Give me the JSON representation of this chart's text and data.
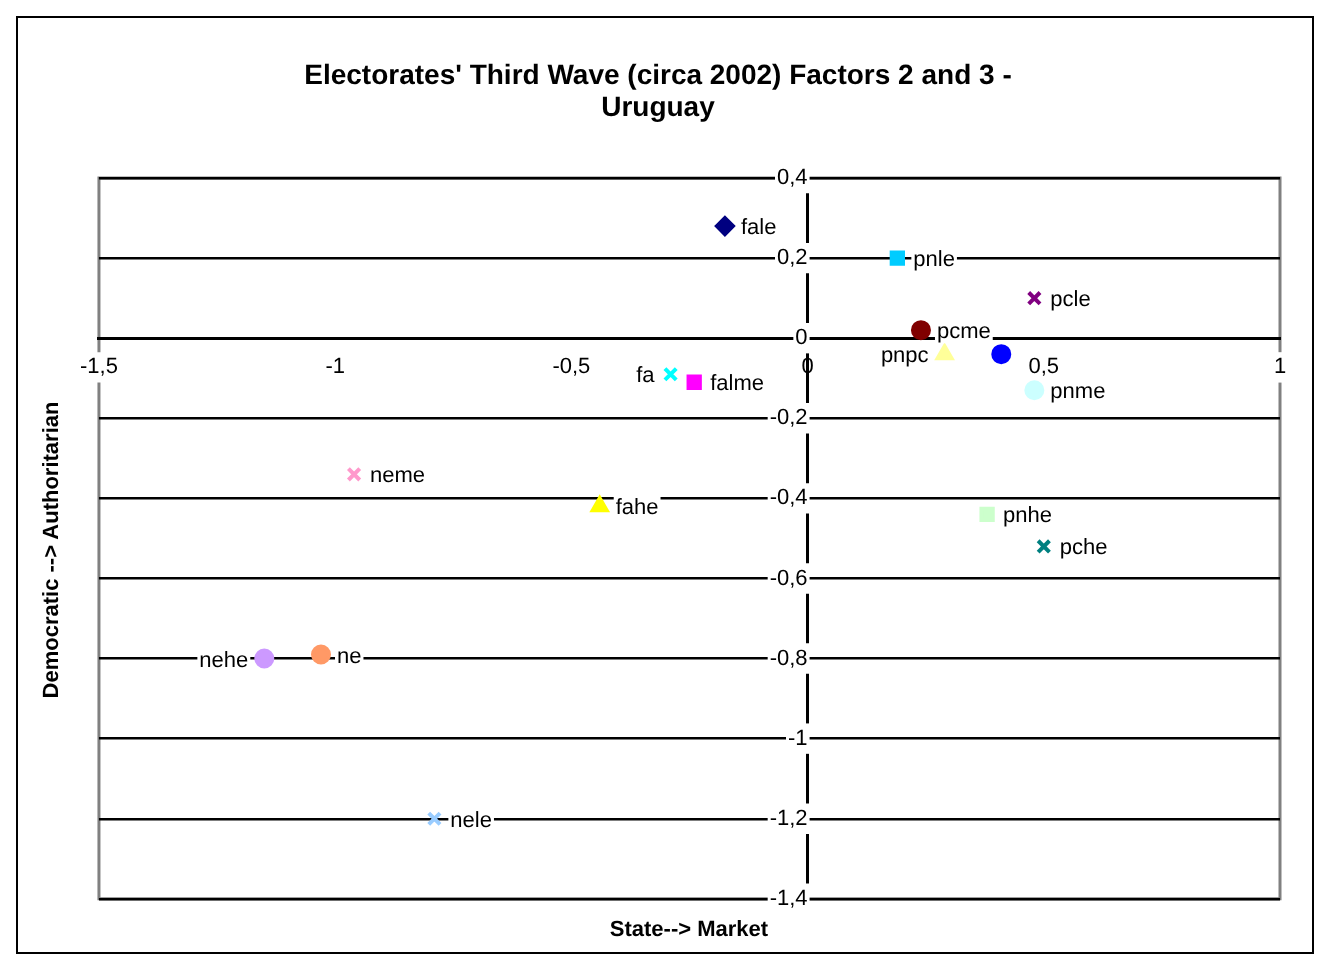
{
  "chart_data": {
    "type": "scatter",
    "title": "Electorates' Third Wave (circa 2002) Factors 2 and 3 - Uruguay",
    "xlabel": "State--> Market",
    "ylabel": "Democratic --> Authoritarian",
    "xlim": [
      -1.5,
      1
    ],
    "xticks": [
      {
        "value": -1.5,
        "label": "-1,5"
      },
      -1,
      {
        "value": -0.5,
        "label": "-0,5"
      },
      0,
      {
        "value": 0.5,
        "label": "0,5"
      },
      1
    ],
    "ylim": [
      -1.4,
      0.4
    ],
    "yticks": [
      {
        "value": 0.4,
        "label": "0,4"
      },
      {
        "value": 0.2,
        "label": "0,2"
      },
      0,
      {
        "value": -0.2,
        "label": "-0,2"
      },
      {
        "value": -0.4,
        "label": "-0,4"
      },
      {
        "value": -0.6,
        "label": "-0,6"
      },
      {
        "value": -0.8,
        "label": "-0,8"
      },
      -1,
      {
        "value": -1.2,
        "label": "-1,2"
      },
      {
        "value": -1.4,
        "label": "-1,4"
      }
    ],
    "grid": "y",
    "legend": false,
    "series": [
      {
        "name": "fale",
        "color": "#000080",
        "marker": "diamond",
        "x": [
          -0.175
        ],
        "values": [
          0.28
        ]
      },
      {
        "name": "pnle",
        "color": "#00ccff",
        "marker": "square",
        "x": [
          0.19
        ],
        "values": [
          0.2
        ]
      },
      {
        "name": "pcle",
        "color": "#800080",
        "marker": "cross",
        "x": [
          0.48
        ],
        "values": [
          0.1
        ]
      },
      {
        "name": "pcme",
        "color": "#800000",
        "marker": "circle",
        "x": [
          0.24
        ],
        "values": [
          0.02
        ]
      },
      {
        "name": "pnpc",
        "color": "#ffff99",
        "marker": "triangle",
        "x": [
          0.29
        ],
        "values": [
          -0.04
        ]
      },
      {
        "color": "#0000ff",
        "marker": "circle",
        "x": [
          0.41
        ],
        "values": [
          -0.04
        ]
      },
      {
        "name": "pnme",
        "color": "#ccffff",
        "marker": "circle",
        "x": [
          0.48
        ],
        "values": [
          -0.13
        ]
      },
      {
        "name": "pnhe",
        "color": "#ccffcc",
        "marker": "square",
        "x": [
          0.38
        ],
        "values": [
          -0.44
        ]
      },
      {
        "name": "pche",
        "color": "#008080",
        "marker": "cross",
        "x": [
          0.5
        ],
        "values": [
          -0.52
        ]
      },
      {
        "name": "fa",
        "color": "#00ffff",
        "marker": "cross",
        "x": [
          -0.29
        ],
        "values": [
          -0.09
        ]
      },
      {
        "name": "falme",
        "color": "#ff00ff",
        "marker": "square",
        "x": [
          -0.24
        ],
        "values": [
          -0.11
        ]
      },
      {
        "name": "neme",
        "color": "#ff99cc",
        "marker": "cross",
        "x": [
          -0.96
        ],
        "values": [
          -0.34
        ]
      },
      {
        "name": "fahe",
        "color": "#ffff00",
        "marker": "triangle",
        "x": [
          -0.44
        ],
        "values": [
          -0.42
        ]
      },
      {
        "name": "nehe",
        "color": "#cc99ff",
        "marker": "circle",
        "x": [
          -1.15
        ],
        "values": [
          -0.8
        ]
      },
      {
        "name": "ne",
        "color": "#ff9966",
        "marker": "circle",
        "x": [
          -1.03
        ],
        "values": [
          -0.79
        ]
      },
      {
        "name": "nele",
        "color": "#99ccff",
        "marker": "cross",
        "x": [
          -0.79
        ],
        "values": [
          -1.2
        ]
      }
    ]
  }
}
